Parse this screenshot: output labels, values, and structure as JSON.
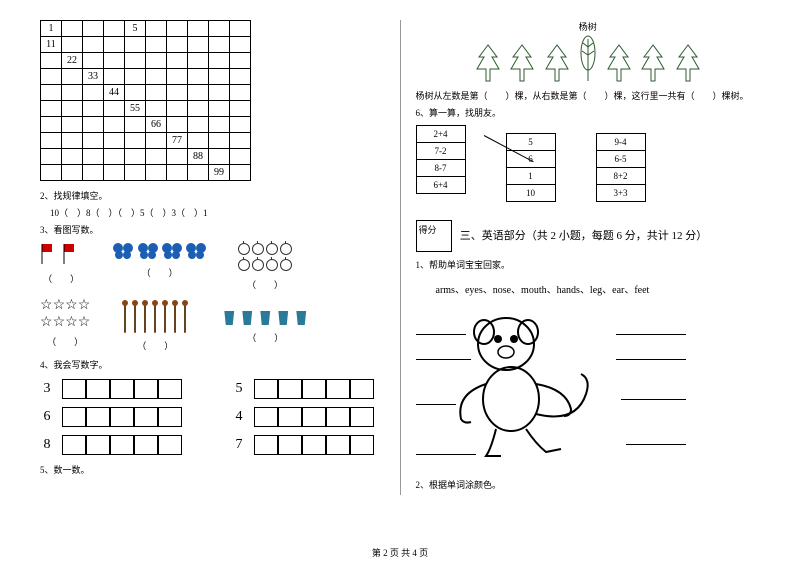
{
  "grid": {
    "cells": [
      [
        "1",
        "",
        "",
        "",
        "5",
        "",
        "",
        "",
        "",
        ""
      ],
      [
        "11",
        "",
        "",
        "",
        "",
        "",
        "",
        "",
        "",
        ""
      ],
      [
        "",
        "22",
        "",
        "",
        "",
        "",
        "",
        "",
        "",
        ""
      ],
      [
        "",
        "",
        "33",
        "",
        "",
        "",
        "",
        "",
        "",
        ""
      ],
      [
        "",
        "",
        "",
        "44",
        "",
        "",
        "",
        "",
        "",
        ""
      ],
      [
        "",
        "",
        "",
        "",
        "55",
        "",
        "",
        "",
        "",
        ""
      ],
      [
        "",
        "",
        "",
        "",
        "",
        "66",
        "",
        "",
        "",
        ""
      ],
      [
        "",
        "",
        "",
        "",
        "",
        "",
        "77",
        "",
        "",
        ""
      ],
      [
        "",
        "",
        "",
        "",
        "",
        "",
        "",
        "88",
        "",
        ""
      ],
      [
        "",
        "",
        "",
        "",
        "",
        "",
        "",
        "",
        "99",
        ""
      ]
    ]
  },
  "q2": {
    "label": "2、找规律填空。",
    "pattern": "10（　）8（　）（　）5（　）3（　）1"
  },
  "q3": {
    "label": "3、看图写数。",
    "paren": "（　　）"
  },
  "q4": {
    "label": "4、我会写数字。",
    "nums_left": [
      "3",
      "6",
      "8"
    ],
    "nums_right": [
      "5",
      "4",
      "7"
    ]
  },
  "q5": {
    "label": "5、数一数。"
  },
  "trees": {
    "title": "杨树",
    "sentence": "杨树从左数是第（　　）棵，从右数是第（　　）棵，这行里一共有（　　）棵树。"
  },
  "q6": {
    "label": "6、算一算，找朋友。",
    "col1": [
      "2+4",
      "7-2",
      "8-7",
      "6+4"
    ],
    "col2": [
      "5",
      "6",
      "1",
      "10"
    ],
    "col3": [
      "9-4",
      "6-5",
      "8+2",
      "3+3"
    ]
  },
  "section3": {
    "score": "得分",
    "title": "三、英语部分（共 2 小题，每题 6 分，共计 12 分）"
  },
  "eq1": {
    "label": "1、帮助单词宝宝回家。",
    "words": "arms、eyes、nose、mouth、hands、leg、ear、feet"
  },
  "eq2": {
    "label": "2、根据单词涂颜色。"
  },
  "footer": "第 2 页 共 4 页",
  "colors": {
    "butterfly": "#1a5fb4",
    "cup": "#2a7a9a",
    "tree": "#2d5a2d",
    "flag": "#cc0000"
  }
}
